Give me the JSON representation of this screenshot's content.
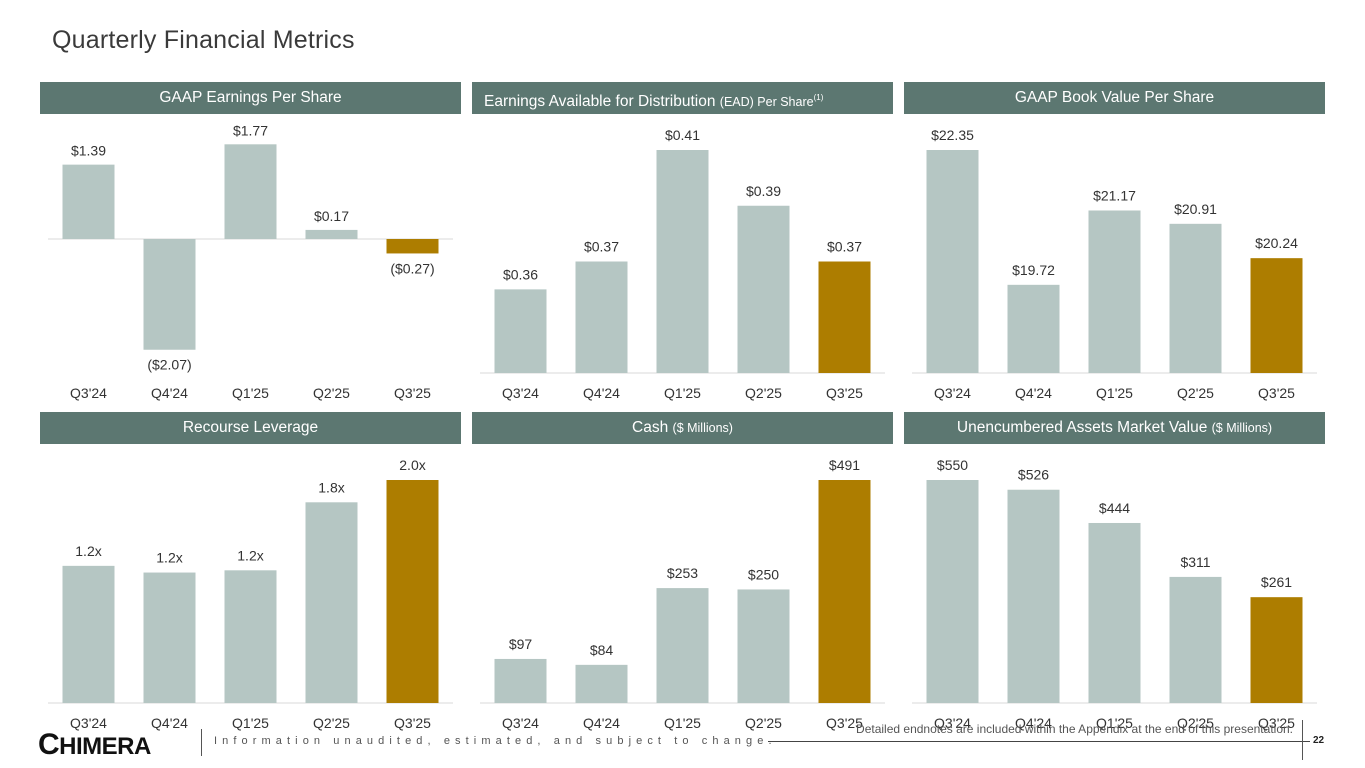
{
  "page": {
    "title": "Quarterly Financial Metrics",
    "page_number": "22",
    "logo_text": "CHIMERA",
    "disclaimer": "Information unaudited, estimated, and subject to change.",
    "endnote": "Detailed endnotes are included within the Appendix at the end of this presentation."
  },
  "colors": {
    "header_bg": "#5c7771",
    "bar_default": "#b5c6c3",
    "bar_highlight": "#ad7d00",
    "axis_line": "#d8d8d8"
  },
  "panels": [
    {
      "id": "eps",
      "title": "GAAP Earnings Per Share",
      "subtitle": "",
      "superscript": "",
      "align": "center"
    },
    {
      "id": "ead",
      "title": "Earnings Available for Distribution",
      "subtitle": "(EAD) Per Share",
      "superscript": "(1)",
      "align": "left"
    },
    {
      "id": "bv",
      "title": "GAAP Book Value Per Share",
      "subtitle": "",
      "superscript": "",
      "align": "center"
    },
    {
      "id": "lev",
      "title": "Recourse Leverage",
      "subtitle": "",
      "superscript": "",
      "align": "center"
    },
    {
      "id": "cash",
      "title": "Cash",
      "subtitle": "($ Millions)",
      "superscript": "",
      "align": "center"
    },
    {
      "id": "unenc",
      "title": "Unencumbered Assets Market Value",
      "subtitle": "($ Millions)",
      "superscript": "",
      "align": "center"
    }
  ],
  "chart_data": [
    {
      "id": "eps",
      "type": "bar",
      "title": "GAAP Earnings Per Share",
      "categories": [
        "Q3'24",
        "Q4'24",
        "Q1'25",
        "Q2'25",
        "Q3'25"
      ],
      "values": [
        1.39,
        -2.07,
        1.77,
        0.17,
        -0.27
      ],
      "labels": [
        "$1.39",
        "($2.07)",
        "$1.77",
        "$0.17",
        "($0.27)"
      ],
      "highlight_index": 4,
      "ylim": [
        -2.07,
        1.77
      ],
      "xlabel": "",
      "ylabel": "",
      "grid": false,
      "legend": "none"
    },
    {
      "id": "ead",
      "type": "bar",
      "title": "Earnings Available for Distribution (EAD) Per Share(1)",
      "categories": [
        "Q3'24",
        "Q4'24",
        "Q1'25",
        "Q2'25",
        "Q3'25"
      ],
      "values": [
        0.36,
        0.37,
        0.41,
        0.39,
        0.37
      ],
      "labels": [
        "$0.36",
        "$0.37",
        "$0.41",
        "$0.39",
        "$0.37"
      ],
      "highlight_index": 4,
      "ylim": [
        0.33,
        0.41
      ],
      "xlabel": "",
      "ylabel": "",
      "grid": false,
      "legend": "none"
    },
    {
      "id": "bv",
      "type": "bar",
      "title": "GAAP Book Value Per Share",
      "categories": [
        "Q3'24",
        "Q4'24",
        "Q1'25",
        "Q2'25",
        "Q3'25"
      ],
      "values": [
        22.35,
        19.72,
        21.17,
        20.91,
        20.24
      ],
      "labels": [
        "$22.35",
        "$19.72",
        "$21.17",
        "$20.91",
        "$20.24"
      ],
      "highlight_index": 4,
      "ylim": [
        18.0,
        22.35
      ],
      "xlabel": "",
      "ylabel": "",
      "grid": false,
      "legend": "none"
    },
    {
      "id": "lev",
      "type": "bar",
      "title": "Recourse Leverage",
      "categories": [
        "Q3'24",
        "Q4'24",
        "Q1'25",
        "Q2'25",
        "Q3'25"
      ],
      "values": [
        1.23,
        1.17,
        1.19,
        1.8,
        2.0
      ],
      "labels": [
        "1.2x",
        "1.2x",
        "1.2x",
        "1.8x",
        "2.0x"
      ],
      "highlight_index": 4,
      "ylim": [
        0,
        2.0
      ],
      "xlabel": "",
      "ylabel": "",
      "grid": false,
      "legend": "none"
    },
    {
      "id": "cash",
      "type": "bar",
      "title": "Cash ($ Millions)",
      "categories": [
        "Q3'24",
        "Q4'24",
        "Q1'25",
        "Q2'25",
        "Q3'25"
      ],
      "values": [
        97,
        84,
        253,
        250,
        491
      ],
      "labels": [
        "$97",
        "$84",
        "$253",
        "$250",
        "$491"
      ],
      "highlight_index": 4,
      "ylim": [
        0,
        491
      ],
      "xlabel": "",
      "ylabel": "",
      "grid": false,
      "legend": "none"
    },
    {
      "id": "unenc",
      "type": "bar",
      "title": "Unencumbered Assets Market Value ($ Millions)",
      "categories": [
        "Q3'24",
        "Q4'24",
        "Q1'25",
        "Q2'25",
        "Q3'25"
      ],
      "values": [
        550,
        526,
        444,
        311,
        261
      ],
      "labels": [
        "$550",
        "$526",
        "$444",
        "$311",
        "$261"
      ],
      "highlight_index": 4,
      "ylim": [
        0,
        550
      ],
      "xlabel": "",
      "ylabel": "",
      "grid": false,
      "legend": "none"
    }
  ]
}
